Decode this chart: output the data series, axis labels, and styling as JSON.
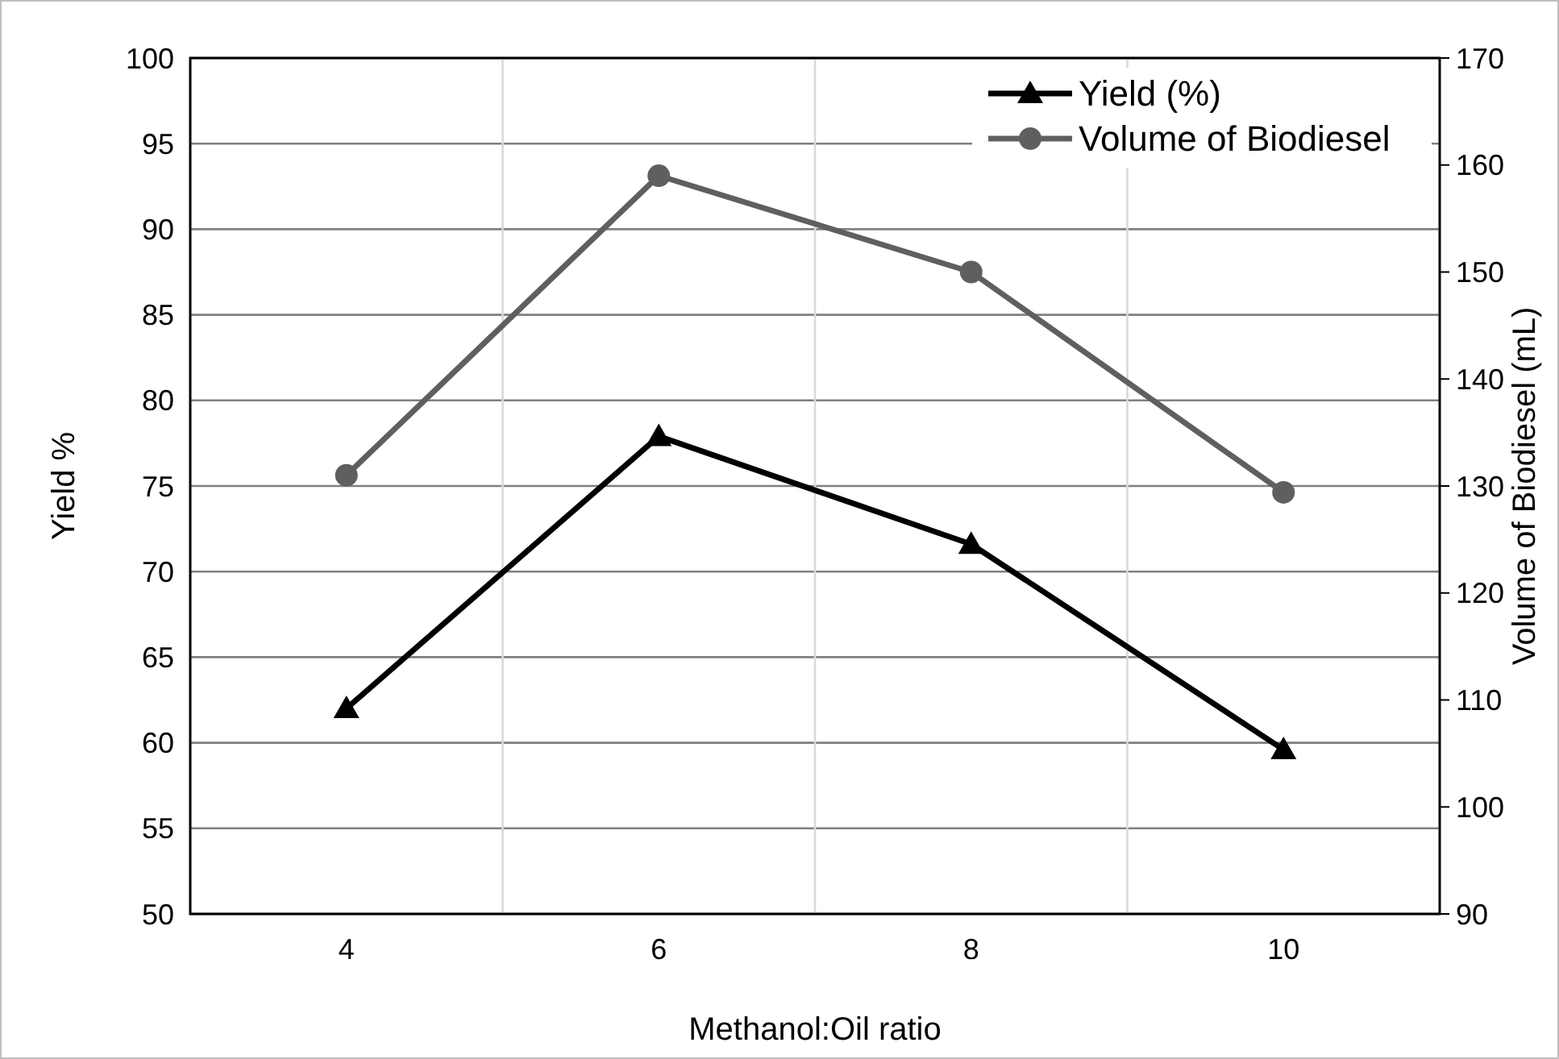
{
  "chart_data": {
    "type": "line",
    "xlabel": "Methanol:Oil ratio",
    "ylabel": "Yield %",
    "y2label": "Volume of Biodiesel (mL)",
    "categories": [
      "4",
      "6",
      "8",
      "10"
    ],
    "series": [
      {
        "name": "Yield (%)",
        "color": "#000000",
        "values": [
          62,
          77.9,
          71.6,
          59.6
        ],
        "marker": "triangle"
      },
      {
        "name": "Volume of Biodiesel",
        "color": "#5f5f5f",
        "values": [
          131,
          159,
          150,
          129.4
        ],
        "marker": "circle",
        "axis": "y2"
      }
    ],
    "ylim": [
      50,
      100
    ],
    "yticks": [
      50,
      55,
      60,
      65,
      70,
      75,
      80,
      85,
      90,
      95,
      100
    ],
    "y2lim": [
      90,
      170
    ],
    "y2ticks": [
      90,
      100,
      110,
      120,
      130,
      140,
      150,
      160,
      170
    ],
    "grid": true,
    "legend": "top right",
    "line_style": "solid"
  }
}
